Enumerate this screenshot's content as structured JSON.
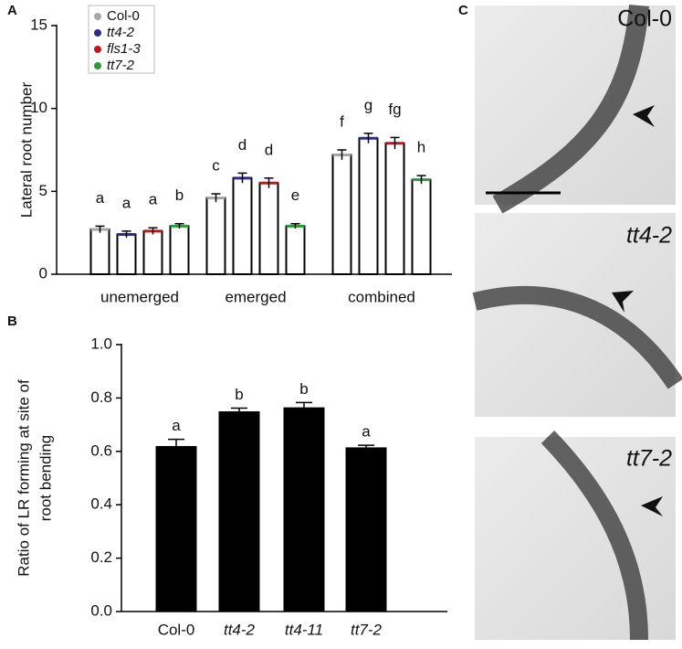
{
  "chart_data": [
    {
      "type": "bar",
      "panel_label": "A",
      "ylabel": "Lateral root number",
      "categories": [
        "unemerged",
        "emerged",
        "combined"
      ],
      "ylim": [
        0,
        15
      ],
      "yticks": [
        0,
        5,
        10,
        15
      ],
      "series": [
        {
          "name": "Col-0",
          "color": "#a6a6a6",
          "values": [
            2.7,
            4.6,
            7.2
          ],
          "errors": [
            0.2,
            0.25,
            0.3
          ],
          "letters": [
            "a",
            "c",
            "f"
          ]
        },
        {
          "name": "tt4-2",
          "color": "#2b2d8c",
          "values": [
            2.4,
            5.8,
            8.2
          ],
          "errors": [
            0.2,
            0.3,
            0.3
          ],
          "letters": [
            "a",
            "d",
            "g"
          ]
        },
        {
          "name": "fls1-3",
          "color": "#c4161c",
          "values": [
            2.6,
            5.5,
            7.9
          ],
          "errors": [
            0.2,
            0.3,
            0.35
          ],
          "letters": [
            "a",
            "d",
            "fg"
          ]
        },
        {
          "name": "tt7-2",
          "color": "#2e9a3a",
          "values": [
            2.9,
            2.9,
            5.7
          ],
          "errors": [
            0.15,
            0.15,
            0.25
          ],
          "letters": [
            "b",
            "e",
            "h"
          ]
        }
      ]
    },
    {
      "type": "bar",
      "panel_label": "B",
      "ylabel": [
        "Ratio of LR forming at site of",
        "root bending"
      ],
      "categories": [
        "Col-0",
        "tt4-2",
        "tt4-11",
        "tt7-2"
      ],
      "values": [
        0.62,
        0.75,
        0.765,
        0.615
      ],
      "errors": [
        0.025,
        0.012,
        0.018,
        0.008
      ],
      "letters": [
        "a",
        "b",
        "b",
        "a"
      ],
      "color": "#000000",
      "ylim": [
        0,
        1
      ],
      "yticks": [
        {
          "value": 0,
          "label": "0.0"
        },
        0.2,
        0.4,
        0.6,
        0.8,
        {
          "value": 1,
          "label": "1.0"
        }
      ]
    }
  ],
  "images": {
    "panel_label": "C",
    "labels": [
      "Col-0",
      "tt4-2",
      "tt7-2"
    ]
  }
}
